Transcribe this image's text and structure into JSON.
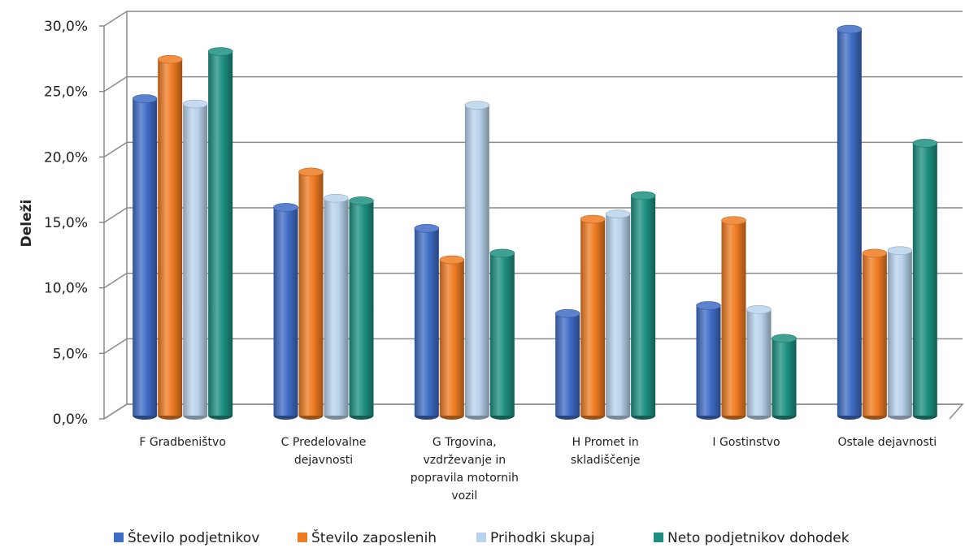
{
  "chart_data": {
    "type": "bar",
    "title": "",
    "xlabel": "",
    "ylabel": "Deleži",
    "ylim": [
      0,
      30
    ],
    "yticks": [
      "0,0%",
      "5,0%",
      "10,0%",
      "15,0%",
      "20,0%",
      "25,0%",
      "30,0%"
    ],
    "grid": true,
    "legend_position": "bottom",
    "categories": [
      [
        "F Gradbeništvo"
      ],
      [
        "C Predelovalne",
        "dejavnosti"
      ],
      [
        "G Trgovina,",
        "vzdrževanje in",
        "popravila motornih",
        "vozil"
      ],
      [
        "H Promet in",
        "skladiščenje"
      ],
      [
        "I Gostinstvo"
      ],
      [
        "Ostale dejavnosti"
      ]
    ],
    "series": [
      {
        "name": "Število podjetnikov",
        "color": "#3f6cc6",
        "values": [
          24.2,
          15.9,
          14.3,
          7.8,
          8.4,
          29.5
        ]
      },
      {
        "name": "Število zaposlenih",
        "color": "#ef7b22",
        "values": [
          27.2,
          18.6,
          11.9,
          15.0,
          14.9,
          12.4
        ]
      },
      {
        "name": "Prihodki skupaj",
        "color": "#b8d3ec",
        "values": [
          23.8,
          16.6,
          23.7,
          15.4,
          8.1,
          12.6
        ]
      },
      {
        "name": "Neto podjetnikov dohodek",
        "color": "#1d8f81",
        "values": [
          27.8,
          16.4,
          12.4,
          16.8,
          5.9,
          20.8
        ]
      }
    ]
  }
}
